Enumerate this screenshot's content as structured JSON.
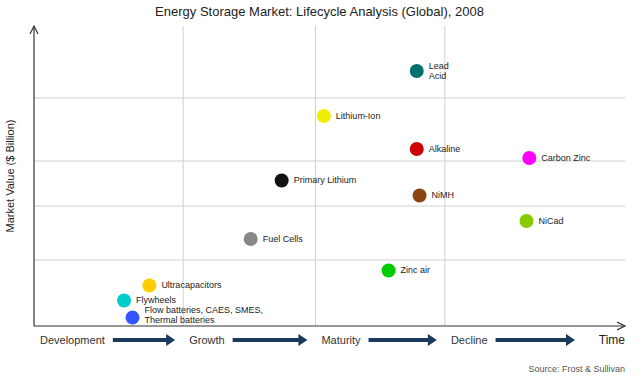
{
  "chart_data": {
    "type": "scatter",
    "title": "Energy Storage Market: Lifecycle Analysis (Global), 2008",
    "xlabel": "Time",
    "ylabel": "Market Value ($ Billion)",
    "labels": [
      "Lead\nAcid",
      "Lithium-Ion",
      "Alkaline",
      "Carbon Zinc",
      "Primary Lithium",
      "NiMH",
      "NiCad",
      "Fuel Cells",
      "Zinc air",
      "Ultracapacitors",
      "Flywheels",
      "Flow batteries, CAES, SMES,\nThermal batteries"
    ],
    "x": [
      6.8,
      5.15,
      6.8,
      8.8,
      4.4,
      6.85,
      8.75,
      3.85,
      6.3,
      2.05,
      1.6,
      1.75
    ],
    "values": [
      8.5,
      7.0,
      5.9,
      5.6,
      4.85,
      4.35,
      3.5,
      2.9,
      1.85,
      1.35,
      0.85,
      0.28
    ],
    "colors": [
      "#007070",
      "#EEEE00",
      "#CC0000",
      "#FF00FF",
      "#111111",
      "#8B4513",
      "#88CC00",
      "#888888",
      "#00CC00",
      "#FFCC00",
      "#00CCCC",
      "#3355FF"
    ],
    "xlim": [
      0,
      10.5
    ],
    "ylim": [
      0,
      10.0
    ],
    "xticks": [
      2.65,
      5.0,
      7.3
    ],
    "yticks": [
      2.2,
      4.0,
      5.5,
      7.6
    ],
    "grid": true,
    "tick_labels": false,
    "annotations": [
      "Development",
      "Growth",
      "Maturity",
      "Decline"
    ],
    "source": "Source: Frost & Sullivan",
    "arrow_color": "#1a3a5c"
  }
}
